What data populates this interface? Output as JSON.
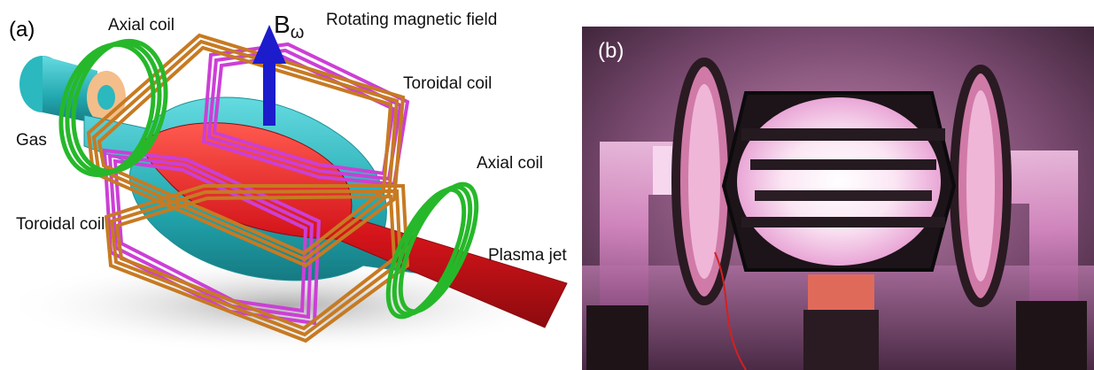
{
  "panel_a": {
    "letter": "(a)",
    "labels": {
      "axial_coil_top": "Axial coil",
      "rotating_field": "Rotating magnetic field",
      "toroidal_coil_top": "Toroidal coil",
      "gas": "Gas",
      "axial_coil_right": "Axial coil",
      "toroidal_coil_left": "Toroidal coil",
      "plasma_jet": "Plasma jet"
    },
    "field_symbol": "B",
    "field_subscript": "ω",
    "colors": {
      "vessel": "#2bb8bf",
      "plasma": "#d4141a",
      "toroidal_coil_a": "#c77a22",
      "toroidal_coil_b": "#cc3fd6",
      "axial_coil": "#26b82a",
      "arrow": "#1c1ccc"
    }
  },
  "panel_b": {
    "letter": "(b)",
    "colors": {
      "glow": "#e9a6d6",
      "background": "#4a2a45"
    }
  }
}
